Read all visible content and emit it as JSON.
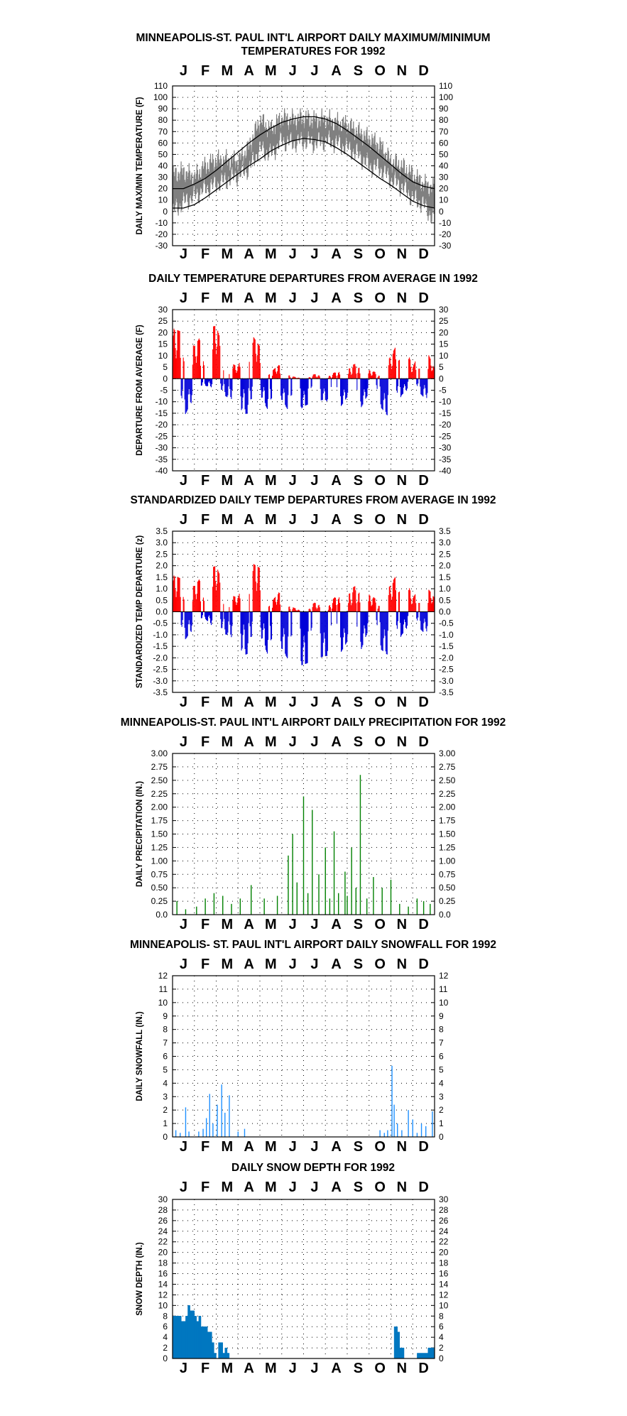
{
  "months": [
    "J",
    "F",
    "M",
    "A",
    "M",
    "J",
    "J",
    "A",
    "S",
    "O",
    "N",
    "D"
  ],
  "colors": {
    "warm": "#ff0000",
    "cold": "#0000d8",
    "observed": "#808080",
    "normal": "#000000",
    "precip": "#008000",
    "snowfall": "#1e90ff",
    "snowdepth": "#0077c0"
  },
  "chart_data": [
    {
      "id": "temps",
      "type": "line",
      "title_lines": [
        "MINNEAPOLIS-ST. PAUL INT'L AIRPORT DAILY MAXIMUM/MINIMUM",
        "TEMPERATURES FOR 1992"
      ],
      "xlabel": "",
      "ylabel": "DAILY MAX/MIN TEMPERATURE (F)",
      "ylim": [
        -30,
        110
      ],
      "yticks": [
        -30,
        -20,
        -10,
        0,
        10,
        20,
        30,
        40,
        50,
        60,
        70,
        80,
        90,
        100,
        110
      ],
      "grid": "dotted",
      "series": [
        {
          "role": "observed max",
          "x_month": [
            0.0,
            0.5,
            1.0,
            1.5,
            2.0,
            2.5,
            3.0,
            3.5,
            4.0,
            4.5,
            5.0,
            5.5,
            6.0,
            6.5,
            7.0,
            7.5,
            8.0,
            8.5,
            9.0,
            9.5,
            10.0,
            10.5,
            11.0,
            11.5,
            12.0
          ],
          "y": [
            32,
            35,
            30,
            40,
            45,
            45,
            44,
            56,
            80,
            72,
            82,
            80,
            82,
            80,
            81,
            78,
            76,
            70,
            64,
            58,
            44,
            40,
            32,
            24,
            20
          ]
        },
        {
          "role": "observed min",
          "x_month": [
            0.0,
            0.5,
            1.0,
            1.5,
            2.0,
            2.5,
            3.0,
            3.5,
            4.0,
            4.5,
            5.0,
            5.5,
            6.0,
            6.5,
            7.0,
            7.5,
            8.0,
            8.5,
            9.0,
            9.5,
            10.0,
            10.5,
            11.0,
            11.5,
            12.0
          ],
          "y": [
            0,
            8,
            14,
            20,
            24,
            28,
            32,
            38,
            55,
            50,
            62,
            60,
            62,
            60,
            62,
            60,
            56,
            50,
            40,
            38,
            28,
            22,
            12,
            6,
            -8
          ]
        },
        {
          "role": "normal max",
          "x_month": [
            0.0,
            0.5,
            1.0,
            1.5,
            2.0,
            2.5,
            3.0,
            3.5,
            4.0,
            4.5,
            5.0,
            5.5,
            6.0,
            6.5,
            7.0,
            7.5,
            8.0,
            8.5,
            9.0,
            9.5,
            10.0,
            10.5,
            11.0,
            11.5,
            12.0
          ],
          "y": [
            20,
            20,
            24,
            29,
            36,
            44,
            52,
            60,
            67,
            73,
            78,
            81,
            83,
            83,
            81,
            77,
            71,
            64,
            57,
            49,
            41,
            33,
            26,
            22,
            20
          ]
        },
        {
          "role": "normal min",
          "x_month": [
            0.0,
            0.5,
            1.0,
            1.5,
            2.0,
            2.5,
            3.0,
            3.5,
            4.0,
            4.5,
            5.0,
            5.5,
            6.0,
            6.5,
            7.0,
            7.5,
            8.0,
            8.5,
            9.0,
            9.5,
            10.0,
            10.5,
            11.0,
            11.5,
            12.0
          ],
          "y": [
            3,
            3,
            6,
            12,
            19,
            26,
            33,
            40,
            46,
            53,
            58,
            62,
            64,
            63,
            61,
            56,
            50,
            43,
            36,
            29,
            23,
            16,
            9,
            5,
            3
          ]
        }
      ]
    },
    {
      "id": "departures",
      "type": "bar",
      "title_lines": [
        "DAILY TEMPERATURE DEPARTURES FROM AVERAGE IN 1992"
      ],
      "xlabel": "",
      "ylabel": "DEPARTURE FROM AVERAGE (F)",
      "ylim": [
        -40,
        30
      ],
      "yticks": [
        -40,
        -35,
        -30,
        -25,
        -20,
        -15,
        -10,
        -5,
        0,
        5,
        10,
        15,
        20,
        25,
        30
      ],
      "grid": "dotted",
      "x_month": [
        0.0,
        0.5,
        1.0,
        1.5,
        2.0,
        2.5,
        3.0,
        3.5,
        4.0,
        4.5,
        5.0,
        5.5,
        6.0,
        6.5,
        7.0,
        7.5,
        8.0,
        8.5,
        9.0,
        9.5,
        10.0,
        10.5,
        11.0,
        11.5,
        12.0
      ],
      "max_positive": [
        22,
        20,
        14,
        22,
        23,
        8,
        5,
        21,
        14,
        3,
        7,
        1,
        0,
        2,
        1,
        3,
        5,
        7,
        4,
        2,
        10,
        19,
        5,
        16,
        4
      ],
      "min_negative": [
        -6,
        -17,
        -8,
        -3,
        -5,
        -8,
        -16,
        -15,
        -7,
        -16,
        -9,
        -17,
        -12,
        -10,
        -9,
        -15,
        -8,
        -15,
        -6,
        -12,
        -18,
        -7,
        -3,
        -8,
        -10
      ]
    },
    {
      "id": "standardized",
      "type": "bar",
      "title_lines": [
        "STANDARDIZED DAILY TEMP DEPARTURES FROM AVERAGE IN 1992"
      ],
      "xlabel": "",
      "ylabel": "STANDARDIZED TEMP DEPARTURE (z)",
      "ylim": [
        -3.5,
        3.5
      ],
      "yticks": [
        -3.5,
        -3.0,
        -2.5,
        -2.0,
        -1.5,
        -1.0,
        -0.5,
        0.0,
        0.5,
        1.0,
        1.5,
        2.0,
        2.5,
        3.0,
        3.5
      ],
      "grid": "dotted",
      "x_month": [
        0.0,
        0.5,
        1.0,
        1.5,
        2.0,
        2.5,
        3.0,
        3.5,
        4.0,
        4.5,
        5.0,
        5.5,
        6.0,
        6.5,
        7.0,
        7.5,
        8.0,
        8.5,
        9.0,
        9.5,
        10.0,
        10.5,
        11.0,
        11.5,
        12.0
      ],
      "max_positive": [
        1.6,
        1.4,
        1.1,
        1.8,
        2.0,
        0.8,
        0.6,
        2.2,
        1.9,
        0.4,
        1.0,
        0.2,
        0.0,
        0.4,
        0.2,
        0.7,
        0.9,
        1.2,
        0.8,
        0.4,
        1.2,
        2.0,
        0.6,
        1.3,
        0.6
      ],
      "min_negative": [
        -0.5,
        -1.3,
        -0.7,
        -0.3,
        -0.9,
        -1.0,
        -2.0,
        -1.8,
        -1.0,
        -2.2,
        -1.6,
        -2.4,
        -2.3,
        -2.1,
        -1.9,
        -2.1,
        -1.3,
        -2.0,
        -0.7,
        -1.6,
        -2.0,
        -1.0,
        -0.4,
        -0.9,
        -0.8
      ]
    },
    {
      "id": "precip",
      "type": "bar",
      "title_lines": [
        "MINNEAPOLIS-ST. PAUL INT'L AIRPORT DAILY PRECIPITATION FOR 1992"
      ],
      "xlabel": "",
      "ylabel": "DAILY PRECIPITATION (IN.)",
      "ylim": [
        0,
        3
      ],
      "yticks": [
        0.0,
        0.25,
        0.5,
        0.75,
        1.0,
        1.25,
        1.5,
        1.75,
        2.0,
        2.25,
        2.5,
        2.75,
        3.0
      ],
      "tick_labels": [
        "0.0",
        "0.25",
        "0.50",
        "0.75",
        "1.00",
        "1.25",
        "1.50",
        "1.75",
        "2.00",
        "2.25",
        "2.50",
        "2.75",
        "3.00"
      ],
      "grid": "dotted",
      "x_month": [
        0.2,
        0.6,
        1.1,
        1.5,
        1.9,
        2.3,
        2.7,
        3.1,
        3.6,
        4.2,
        4.8,
        5.3,
        5.5,
        5.7,
        6.0,
        6.2,
        6.4,
        6.7,
        7.0,
        7.2,
        7.4,
        7.6,
        7.9,
        8.0,
        8.2,
        8.4,
        8.6,
        8.9,
        9.2,
        9.6,
        10.0,
        10.4,
        10.8,
        11.2,
        11.5,
        11.8
      ],
      "values": [
        0.25,
        0.1,
        0.15,
        0.3,
        0.4,
        0.35,
        0.2,
        0.3,
        0.55,
        0.3,
        0.35,
        1.1,
        1.5,
        0.6,
        2.2,
        0.4,
        1.95,
        0.75,
        1.25,
        0.3,
        1.55,
        0.4,
        0.8,
        0.35,
        1.25,
        0.5,
        2.6,
        0.3,
        0.7,
        0.5,
        0.65,
        0.2,
        0.15,
        0.3,
        0.25,
        0.2
      ]
    },
    {
      "id": "snowfall",
      "type": "bar",
      "title_lines": [
        "MINNEAPOLIS- ST. PAUL INT'L AIRPORT DAILY SNOWFALL FOR 1992"
      ],
      "xlabel": "",
      "ylabel": "DAILY SNOWFALL (IN.)",
      "ylim": [
        0,
        12
      ],
      "yticks": [
        0,
        1,
        2,
        3,
        4,
        5,
        6,
        7,
        8,
        9,
        10,
        11,
        12
      ],
      "grid": "dotted",
      "x_month": [
        0.15,
        0.35,
        0.6,
        0.75,
        1.2,
        1.4,
        1.55,
        1.7,
        1.85,
        2.05,
        2.25,
        2.4,
        2.6,
        3.0,
        3.3,
        9.5,
        9.7,
        9.85,
        10.05,
        10.15,
        10.3,
        10.5,
        10.8,
        11.0,
        11.2,
        11.4,
        11.6,
        11.9
      ],
      "values": [
        0.5,
        0.3,
        2.2,
        0.4,
        0.4,
        0.6,
        1.4,
        3.2,
        1.0,
        2.4,
        3.9,
        1.8,
        3.1,
        0.4,
        0.6,
        0.5,
        0.3,
        0.5,
        5.3,
        2.4,
        1.0,
        0.5,
        2.0,
        1.3,
        0.3,
        1.0,
        0.8,
        1.9
      ]
    },
    {
      "id": "snowdepth",
      "type": "area",
      "title_lines": [
        "DAILY SNOW DEPTH FOR 1992"
      ],
      "xlabel": "",
      "ylabel": "SNOW DEPTH (IN.)",
      "ylim": [
        0,
        30
      ],
      "yticks": [
        0,
        2,
        4,
        6,
        8,
        10,
        12,
        14,
        16,
        18,
        20,
        22,
        24,
        26,
        28,
        30
      ],
      "grid": "dotted",
      "x_month": [
        0.0,
        0.2,
        0.4,
        0.6,
        0.7,
        0.8,
        1.0,
        1.1,
        1.2,
        1.3,
        1.5,
        1.6,
        1.8,
        1.9,
        2.0,
        2.1,
        2.2,
        2.3,
        2.4,
        2.5,
        2.6,
        2.7,
        2.9,
        3.0,
        10.0,
        10.15,
        10.3,
        10.4,
        10.6,
        10.8,
        11.0,
        11.2,
        11.5,
        11.7,
        12.0
      ],
      "values": [
        8,
        8,
        7,
        8,
        10,
        9,
        8,
        7,
        8,
        6,
        6,
        5,
        3,
        1,
        0,
        3,
        3,
        1,
        2,
        1,
        0,
        0,
        0,
        0,
        0,
        6,
        5,
        2,
        0,
        0,
        0,
        1,
        1,
        2,
        4
      ]
    }
  ]
}
